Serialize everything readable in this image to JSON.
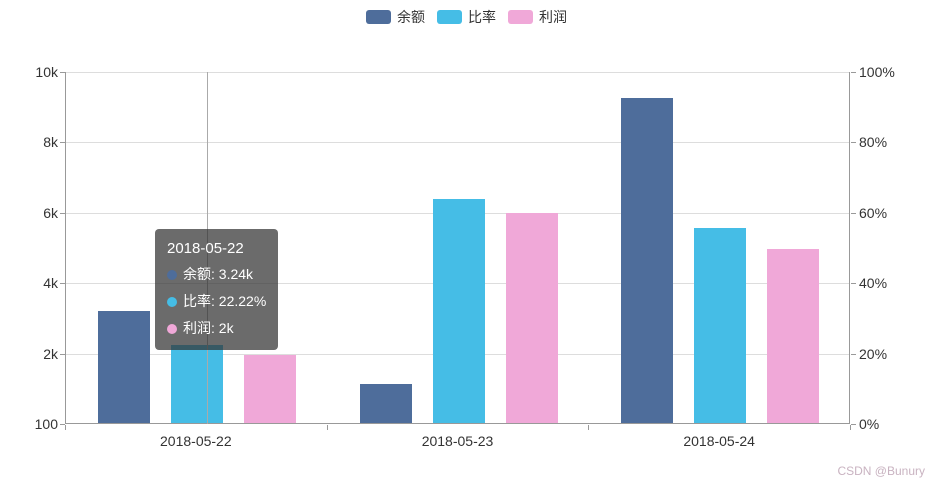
{
  "legend": {
    "items": [
      {
        "id": "balance",
        "label": "余额",
        "color": "#4e6d9b"
      },
      {
        "id": "ratio",
        "label": "比率",
        "color": "#45bde6"
      },
      {
        "id": "profit",
        "label": "利润",
        "color": "#f0a8d8"
      }
    ]
  },
  "chart_data": {
    "type": "bar",
    "title": "",
    "categories": [
      "2018-05-22",
      "2018-05-23",
      "2018-05-24"
    ],
    "series": [
      {
        "id": "balance",
        "name": "余额",
        "axis": "left",
        "color": "#4e6d9b",
        "values": [
          3240,
          1200,
          9250
        ]
      },
      {
        "id": "ratio",
        "name": "比率",
        "axis": "right",
        "color": "#45bde6",
        "values": [
          22.22,
          63.5,
          55.5
        ]
      },
      {
        "id": "profit",
        "name": "利润",
        "axis": "left",
        "color": "#f0a8d8",
        "values": [
          2000,
          6000,
          5000
        ]
      }
    ],
    "left_axis": {
      "min": 100,
      "max": 10000,
      "ticks": [
        "10k",
        "8k",
        "6k",
        "4k",
        "2k",
        "100"
      ]
    },
    "right_axis": {
      "min": 0,
      "max": 100,
      "ticks": [
        "100%",
        "80%",
        "60%",
        "40%",
        "20%",
        "0%"
      ]
    },
    "grid": true,
    "legend_position": "top"
  },
  "tooltip": {
    "title": "2018-05-22",
    "items": [
      {
        "id": "balance",
        "label": "余额",
        "value": "3.24k",
        "color": "#4e6d9b"
      },
      {
        "id": "ratio",
        "label": "比率",
        "value": "22.22%",
        "color": "#45bde6"
      },
      {
        "id": "profit",
        "label": "利润",
        "value": "2k",
        "color": "#f0a8d8"
      }
    ]
  },
  "watermark": "CSDN @Bunury"
}
